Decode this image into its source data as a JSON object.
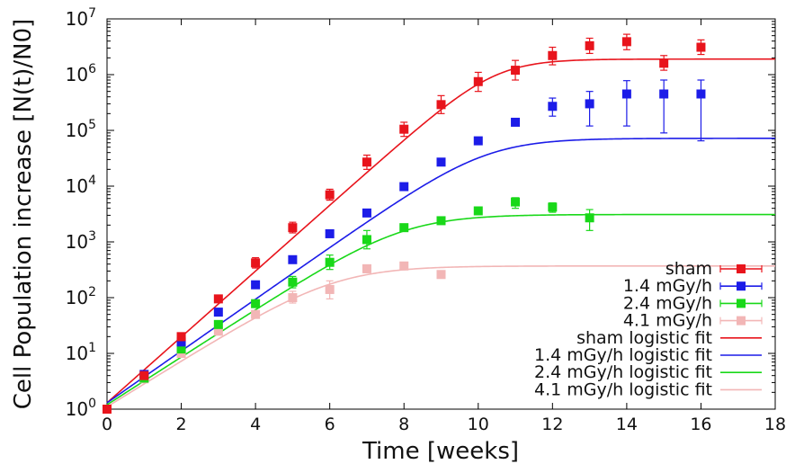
{
  "chart_data": {
    "type": "scatter",
    "title": "",
    "xlabel": "Time [weeks]",
    "ylabel": "Cell Population increase [N(t)/N0]",
    "xlim": [
      0,
      18
    ],
    "ylim": [
      1,
      10000000
    ],
    "yscale": "log",
    "grid": false,
    "legend_position": "bottom-right",
    "x_ticks": [
      {
        "value": 0,
        "label": "0"
      },
      {
        "value": 2,
        "label": "2"
      },
      {
        "value": 4,
        "label": "4"
      },
      {
        "value": 6,
        "label": "6"
      },
      {
        "value": 8,
        "label": "8"
      },
      {
        "value": 10,
        "label": "10"
      },
      {
        "value": 12,
        "label": "12"
      },
      {
        "value": 14,
        "label": "14"
      },
      {
        "value": 16,
        "label": "16"
      },
      {
        "value": 18,
        "label": "18"
      }
    ],
    "y_ticks": [
      {
        "value": 1,
        "base": "10",
        "exp": "0"
      },
      {
        "value": 10,
        "base": "10",
        "exp": "1"
      },
      {
        "value": 100,
        "base": "10",
        "exp": "2"
      },
      {
        "value": 1000,
        "base": "10",
        "exp": "3"
      },
      {
        "value": 10000,
        "base": "10",
        "exp": "4"
      },
      {
        "value": 100000,
        "base": "10",
        "exp": "5"
      },
      {
        "value": 1000000,
        "base": "10",
        "exp": "6"
      },
      {
        "value": 10000000,
        "base": "10",
        "exp": "7"
      }
    ],
    "series": [
      {
        "name": "sham",
        "color": "#e8141c",
        "kind": "points",
        "points": [
          {
            "x": 0,
            "y": 1.0
          },
          {
            "x": 1,
            "y": 4.0,
            "lo": 3.5,
            "hi": 4.6
          },
          {
            "x": 2,
            "y": 20,
            "lo": 17,
            "hi": 23
          },
          {
            "x": 3,
            "y": 95,
            "lo": 82,
            "hi": 110
          },
          {
            "x": 4,
            "y": 420,
            "lo": 340,
            "hi": 520
          },
          {
            "x": 5,
            "y": 1800,
            "lo": 1450,
            "hi": 2250
          },
          {
            "x": 6,
            "y": 7000,
            "lo": 5600,
            "hi": 8800
          },
          {
            "x": 7,
            "y": 27000,
            "lo": 20000,
            "hi": 36000
          },
          {
            "x": 8,
            "y": 105000,
            "lo": 78000,
            "hi": 140000
          },
          {
            "x": 9,
            "y": 290000,
            "lo": 200000,
            "hi": 420000
          },
          {
            "x": 10,
            "y": 750000,
            "lo": 500000,
            "hi": 1100000
          },
          {
            "x": 11,
            "y": 1200000,
            "lo": 800000,
            "hi": 1800000
          },
          {
            "x": 12,
            "y": 2200000,
            "lo": 1500000,
            "hi": 3100000
          },
          {
            "x": 13,
            "y": 3300000,
            "lo": 2400000,
            "hi": 4500000
          },
          {
            "x": 14,
            "y": 3900000,
            "lo": 2800000,
            "hi": 5300000
          },
          {
            "x": 15,
            "y": 1600000,
            "lo": 1200000,
            "hi": 2200000
          },
          {
            "x": 16,
            "y": 3100000,
            "lo": 2300000,
            "hi": 4200000
          }
        ]
      },
      {
        "name": "1.4 mGy/h",
        "color": "#1c1ce8",
        "kind": "points",
        "points": [
          {
            "x": 0,
            "y": 1.0
          },
          {
            "x": 1,
            "y": 4.2
          },
          {
            "x": 2,
            "y": 16,
            "lo": 14,
            "hi": 18
          },
          {
            "x": 3,
            "y": 55,
            "lo": 48,
            "hi": 63
          },
          {
            "x": 4,
            "y": 170
          },
          {
            "x": 5,
            "y": 480
          },
          {
            "x": 6,
            "y": 1400
          },
          {
            "x": 7,
            "y": 3300
          },
          {
            "x": 8,
            "y": 9800
          },
          {
            "x": 9,
            "y": 27000
          },
          {
            "x": 10,
            "y": 65000
          },
          {
            "x": 11,
            "y": 140000
          },
          {
            "x": 12,
            "y": 270000,
            "lo": 180000,
            "hi": 380000
          },
          {
            "x": 13,
            "y": 300000,
            "lo": 120000,
            "hi": 500000
          },
          {
            "x": 14,
            "y": 450000,
            "lo": 120000,
            "hi": 780000
          },
          {
            "x": 15,
            "y": 450000,
            "lo": 90000,
            "hi": 800000
          },
          {
            "x": 16,
            "y": 450000,
            "lo": 65000,
            "hi": 800000
          }
        ]
      },
      {
        "name": "2.4 mGy/h",
        "color": "#19d819",
        "kind": "points",
        "points": [
          {
            "x": 0,
            "y": 1.0
          },
          {
            "x": 1,
            "y": 3.6,
            "lo": 3.1,
            "hi": 4.2
          },
          {
            "x": 2,
            "y": 12
          },
          {
            "x": 3,
            "y": 33
          },
          {
            "x": 4,
            "y": 78
          },
          {
            "x": 5,
            "y": 190,
            "lo": 150,
            "hi": 240
          },
          {
            "x": 6,
            "y": 430,
            "lo": 320,
            "hi": 580
          },
          {
            "x": 7,
            "y": 1100,
            "lo": 750,
            "hi": 1600
          },
          {
            "x": 8,
            "y": 1800
          },
          {
            "x": 9,
            "y": 2400
          },
          {
            "x": 10,
            "y": 3600
          },
          {
            "x": 11,
            "y": 5200,
            "lo": 4000,
            "hi": 6200
          },
          {
            "x": 12,
            "y": 4200,
            "lo": 3400,
            "hi": 5000
          },
          {
            "x": 13,
            "y": 2700,
            "lo": 1600,
            "hi": 3800
          }
        ]
      },
      {
        "name": "4.1 mGy/h",
        "color": "#f2b6b6",
        "kind": "points",
        "points": [
          {
            "x": 0,
            "y": 1.0
          },
          {
            "x": 1,
            "y": 3.5
          },
          {
            "x": 2,
            "y": 10
          },
          {
            "x": 3,
            "y": 25
          },
          {
            "x": 4,
            "y": 50
          },
          {
            "x": 5,
            "y": 100,
            "lo": 80,
            "hi": 130
          },
          {
            "x": 6,
            "y": 140,
            "lo": 95,
            "hi": 200
          },
          {
            "x": 7,
            "y": 330,
            "lo": 280,
            "hi": 380
          },
          {
            "x": 8,
            "y": 370,
            "lo": 330,
            "hi": 410
          },
          {
            "x": 9,
            "y": 260
          }
        ]
      },
      {
        "name": "sham logistic fit",
        "color": "#e8141c",
        "kind": "fit",
        "K": 1900000,
        "N0": 1.3,
        "r": 1.36
      },
      {
        "name": "1.4 mGy/h logistic fit",
        "color": "#1c1ce8",
        "kind": "fit",
        "K": 72000,
        "N0": 1.3,
        "r": 1.07
      },
      {
        "name": "2.4 mGy/h logistic fit",
        "color": "#19d819",
        "kind": "fit",
        "K": 3100,
        "N0": 1.2,
        "r": 0.985
      },
      {
        "name": "4.1 mGy/h logistic fit",
        "color": "#f2b6b6",
        "kind": "fit",
        "K": 370,
        "N0": 1.1,
        "r": 0.95
      }
    ]
  }
}
